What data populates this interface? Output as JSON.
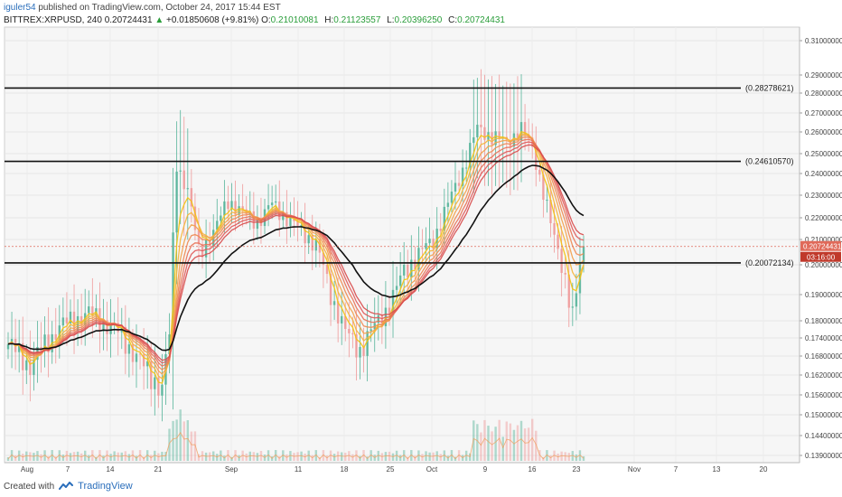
{
  "header": {
    "author": "iguler54",
    "published": "published on TradingView.com, October 24, 2017 15:44 EST"
  },
  "ohlc": {
    "symbol": "BITTREX:XRPUSD, 240",
    "last": "0.20724431",
    "change": "+0.01850608 (+9.81%)",
    "o_label": "O:",
    "o": "0.21010081",
    "h_label": "H:",
    "h": "0.21123557",
    "l_label": "L:",
    "l": "0.20396250",
    "c_label": "C:",
    "c": "0.20724431"
  },
  "footer": {
    "created_with": "Created with",
    "brand": "TradingView"
  },
  "colors": {
    "up": "#56b49a",
    "down": "#ef9a9a",
    "ma": "#111111",
    "ribbon": [
      "#f4c20d",
      "#f5b43a",
      "#f3a04a",
      "#ee8a52",
      "#e97256",
      "#e05a5a",
      "#d84a4a"
    ],
    "price_tag": "#e06a5a",
    "time_tag": "#c0392b",
    "volume_ma": "#f0a060"
  },
  "chart_data": {
    "type": "candlestick",
    "symbol": "BITTREX:XRPUSD",
    "interval": "240",
    "x_tick_labels": [
      "Aug",
      "7",
      "14",
      "21",
      "Sep",
      "11",
      "18",
      "25",
      "Oct",
      "9",
      "16",
      "23",
      "Nov",
      "7",
      "13",
      "20"
    ],
    "y_tick_labels": [
      "0.31000000",
      "0.29000000",
      "0.28000000",
      "0.27000000",
      "0.26000000",
      "0.25000000",
      "0.24000000",
      "0.23000000",
      "0.22000000",
      "0.21000000",
      "0.20000000",
      "0.19000000",
      "0.18000000",
      "0.17400000",
      "0.16800000",
      "0.16200000",
      "0.15600000",
      "0.15000000",
      "0.14400000",
      "0.13900000"
    ],
    "horizontal_levels": [
      {
        "label": "(0.28278621)",
        "value": 0.28278621
      },
      {
        "label": "(0.24610570)",
        "value": 0.2461057
      },
      {
        "label": "(0.20072134)",
        "value": 0.20072134
      }
    ],
    "current_price": {
      "label": "0.20724431",
      "value": 0.20724431,
      "countdown": "03:16:00"
    },
    "price_path_keyframes": [
      {
        "x": 0,
        "y": 0.172
      },
      {
        "x": 6,
        "y": 0.165
      },
      {
        "x": 14,
        "y": 0.178
      },
      {
        "x": 22,
        "y": 0.183
      },
      {
        "x": 30,
        "y": 0.176
      },
      {
        "x": 38,
        "y": 0.163
      },
      {
        "x": 42,
        "y": 0.158
      },
      {
        "x": 44,
        "y": 0.175
      },
      {
        "x": 46,
        "y": 0.245
      },
      {
        "x": 49,
        "y": 0.232
      },
      {
        "x": 52,
        "y": 0.205
      },
      {
        "x": 56,
        "y": 0.213
      },
      {
        "x": 60,
        "y": 0.228
      },
      {
        "x": 64,
        "y": 0.222
      },
      {
        "x": 68,
        "y": 0.218
      },
      {
        "x": 72,
        "y": 0.226
      },
      {
        "x": 76,
        "y": 0.22
      },
      {
        "x": 80,
        "y": 0.214
      },
      {
        "x": 84,
        "y": 0.208
      },
      {
        "x": 88,
        "y": 0.19
      },
      {
        "x": 92,
        "y": 0.176
      },
      {
        "x": 96,
        "y": 0.17
      },
      {
        "x": 100,
        "y": 0.178
      },
      {
        "x": 104,
        "y": 0.186
      },
      {
        "x": 108,
        "y": 0.198
      },
      {
        "x": 112,
        "y": 0.204
      },
      {
        "x": 116,
        "y": 0.21
      },
      {
        "x": 120,
        "y": 0.226
      },
      {
        "x": 124,
        "y": 0.242
      },
      {
        "x": 128,
        "y": 0.262
      },
      {
        "x": 132,
        "y": 0.258
      },
      {
        "x": 136,
        "y": 0.255
      },
      {
        "x": 140,
        "y": 0.262
      },
      {
        "x": 143,
        "y": 0.252
      },
      {
        "x": 146,
        "y": 0.232
      },
      {
        "x": 149,
        "y": 0.21
      },
      {
        "x": 152,
        "y": 0.196
      },
      {
        "x": 154,
        "y": 0.182
      },
      {
        "x": 157,
        "y": 0.2072
      }
    ],
    "volume_note": "volume histogram at bottom with volume moving average",
    "grid": true
  }
}
